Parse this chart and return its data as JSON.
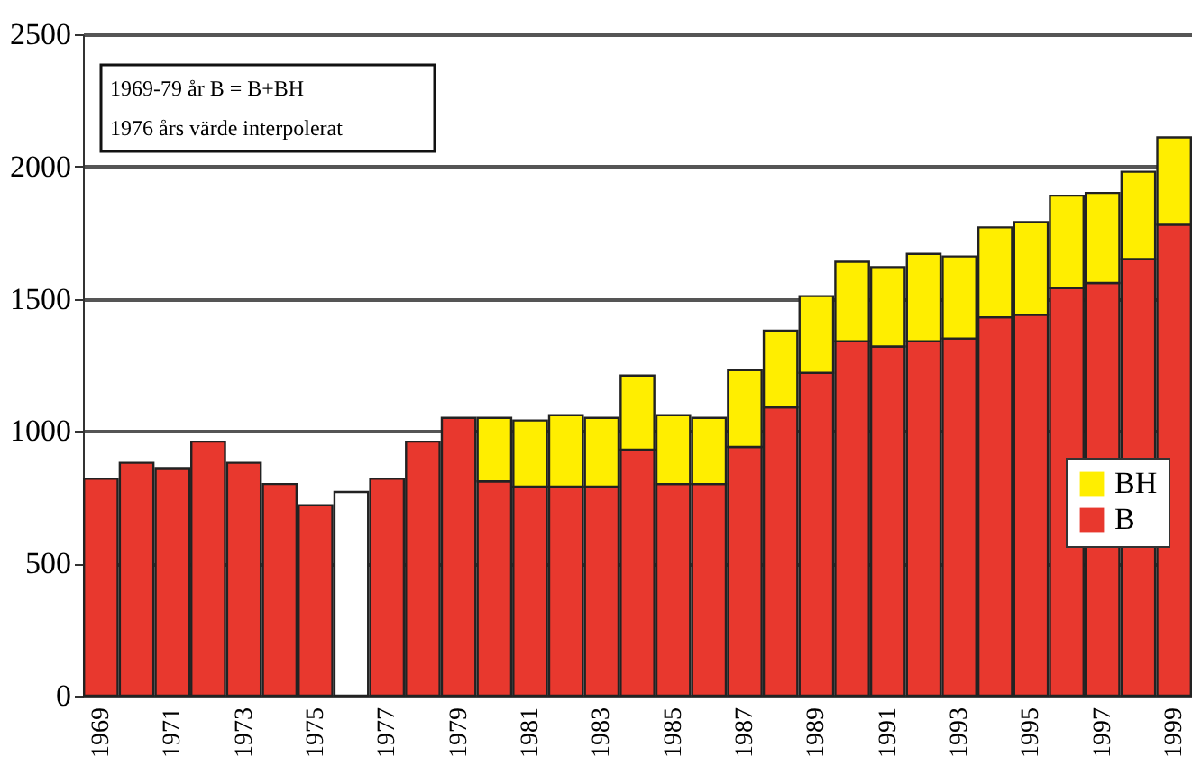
{
  "chart_data": {
    "type": "bar",
    "stacked": true,
    "categories": [
      "1969",
      null,
      "1971",
      null,
      "1973",
      null,
      "1975",
      null,
      "1977",
      null,
      "1979",
      null,
      "1981",
      null,
      "1983",
      null,
      "1985",
      null,
      "1987",
      null,
      "1989",
      null,
      "1991",
      null,
      "1993",
      null,
      "1995",
      null,
      "1997",
      null,
      "1999"
    ],
    "series": [
      {
        "name": "B",
        "color": "#e8382e",
        "colors": [
          "#e8382e",
          "#e8382e",
          "#e8382e",
          "#e8382e",
          "#e8382e",
          "#e8382e",
          "#e8382e",
          "#ffffff",
          "#e8382e",
          "#e8382e",
          "#e8382e",
          "#e8382e",
          "#e8382e",
          "#e8382e",
          "#e8382e",
          "#e8382e",
          "#e8382e",
          "#e8382e",
          "#e8382e",
          "#e8382e",
          "#e8382e",
          "#e8382e",
          "#e8382e",
          "#e8382e",
          "#e8382e",
          "#e8382e",
          "#e8382e",
          "#e8382e",
          "#e8382e",
          "#e8382e",
          "#e8382e"
        ],
        "values": [
          820,
          880,
          860,
          960,
          880,
          800,
          720,
          770,
          820,
          960,
          1050,
          810,
          790,
          790,
          790,
          930,
          800,
          800,
          940,
          1090,
          1220,
          1340,
          1320,
          1340,
          1350,
          1430,
          1440,
          1540,
          1560,
          1650,
          1780
        ]
      },
      {
        "name": "BH",
        "color": "#ffee00",
        "values": [
          null,
          null,
          null,
          null,
          null,
          null,
          null,
          null,
          null,
          null,
          null,
          240,
          250,
          270,
          260,
          280,
          260,
          250,
          290,
          290,
          290,
          300,
          300,
          330,
          310,
          340,
          350,
          350,
          340,
          330,
          330
        ]
      }
    ],
    "ylim": [
      0,
      2500
    ],
    "yticks": [
      0,
      500,
      1000,
      1500,
      2000,
      2500
    ],
    "grid": "y",
    "legend": "right",
    "annotations": [
      "1969-79 år B = B+BH",
      "1976 års värde interpolerat"
    ]
  }
}
